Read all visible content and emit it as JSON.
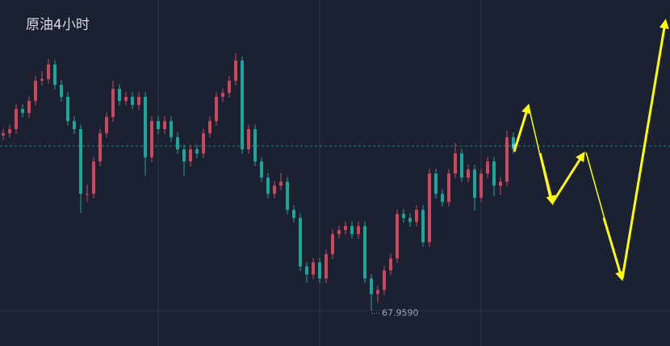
{
  "chart_data": {
    "type": "candlestick",
    "title": "原油4小时",
    "ylim": [
      67.35,
      73.35
    ],
    "up_color": "#c9485b",
    "down_color": "#22a39a",
    "min_label": "67.9590",
    "open": [
      71.0,
      71.04,
      71.11,
      71.46,
      71.39,
      71.6,
      71.95,
      71.98,
      72.23,
      71.88,
      71.67,
      71.25,
      71.11,
      69.99,
      69.99,
      70.55,
      71.04,
      71.32,
      71.81,
      71.6,
      71.67,
      71.53,
      71.67,
      70.62,
      71.25,
      71.11,
      71.25,
      70.97,
      70.76,
      70.55,
      70.76,
      70.69,
      71.04,
      71.25,
      71.67,
      71.74,
      71.95,
      72.3,
      70.76,
      71.11,
      70.55,
      70.27,
      69.99,
      70.13,
      70.2,
      69.71,
      69.57,
      68.73,
      68.59,
      68.8,
      68.52,
      68.94,
      69.29,
      69.36,
      69.43,
      69.29,
      69.43,
      68.52,
      68.25,
      68.32,
      68.66,
      68.87,
      69.64,
      69.57,
      69.5,
      69.71,
      69.15,
      70.34,
      69.99,
      69.85,
      70.34,
      70.69,
      70.27,
      70.41,
      69.92,
      70.34,
      70.55,
      70.13,
      70.2,
      70.97
    ],
    "high": [
      71.12,
      71.19,
      71.54,
      71.54,
      71.68,
      72.03,
      72.12,
      72.33,
      72.31,
      71.96,
      71.75,
      71.33,
      71.19,
      70.15,
      70.63,
      71.12,
      71.4,
      71.95,
      71.89,
      71.75,
      71.75,
      71.75,
      71.75,
      71.33,
      71.33,
      71.33,
      71.33,
      71.05,
      70.84,
      70.84,
      70.84,
      71.12,
      71.33,
      71.75,
      71.82,
      72.03,
      72.43,
      72.38,
      71.19,
      71.19,
      70.63,
      70.35,
      70.21,
      70.35,
      70.28,
      69.79,
      69.65,
      68.81,
      68.88,
      68.88,
      69.02,
      69.37,
      69.44,
      69.51,
      69.51,
      69.51,
      69.51,
      68.6,
      68.4,
      68.74,
      68.95,
      69.72,
      69.72,
      69.65,
      69.79,
      69.79,
      70.42,
      70.42,
      70.07,
      70.42,
      70.87,
      70.77,
      70.49,
      70.49,
      70.42,
      70.63,
      70.63,
      70.28,
      71.09,
      71.05
    ],
    "low": [
      70.92,
      70.96,
      71.03,
      71.31,
      71.31,
      71.52,
      71.87,
      71.9,
      71.8,
      71.59,
      71.17,
      71.03,
      69.66,
      69.85,
      69.91,
      70.47,
      70.96,
      71.24,
      71.52,
      71.52,
      71.45,
      71.45,
      70.3,
      70.54,
      71.03,
      71.03,
      70.89,
      70.68,
      70.3,
      70.47,
      70.61,
      70.61,
      70.96,
      71.17,
      71.59,
      71.66,
      71.87,
      70.68,
      70.68,
      70.47,
      70.19,
      69.91,
      69.91,
      70.05,
      69.63,
      69.49,
      68.65,
      68.45,
      68.51,
      68.44,
      68.44,
      68.86,
      69.21,
      69.28,
      69.21,
      69.21,
      68.44,
      67.959,
      68.1,
      68.24,
      68.58,
      68.79,
      69.49,
      69.42,
      69.42,
      69.07,
      69.07,
      69.91,
      69.77,
      69.77,
      70.26,
      70.19,
      70.19,
      69.7,
      69.84,
      70.26,
      69.95,
      69.97,
      70.12,
      70.68
    ],
    "close": [
      71.04,
      71.11,
      71.46,
      71.39,
      71.6,
      71.95,
      71.98,
      72.23,
      71.88,
      71.67,
      71.25,
      71.11,
      69.99,
      69.99,
      70.55,
      71.04,
      71.32,
      71.81,
      71.6,
      71.67,
      71.53,
      71.67,
      70.62,
      71.25,
      71.11,
      71.25,
      70.97,
      70.76,
      70.55,
      70.76,
      70.69,
      71.04,
      71.25,
      71.67,
      71.74,
      71.95,
      72.3,
      70.76,
      71.11,
      70.55,
      70.27,
      69.99,
      70.13,
      70.2,
      69.71,
      69.57,
      68.73,
      68.59,
      68.8,
      68.52,
      68.94,
      69.29,
      69.36,
      69.43,
      69.29,
      69.43,
      68.52,
      68.25,
      68.32,
      68.66,
      68.87,
      69.64,
      69.57,
      69.5,
      69.71,
      69.15,
      70.34,
      69.99,
      69.85,
      70.34,
      70.69,
      70.27,
      70.41,
      69.92,
      70.34,
      70.55,
      70.13,
      70.2,
      70.97,
      70.76
    ]
  }
}
